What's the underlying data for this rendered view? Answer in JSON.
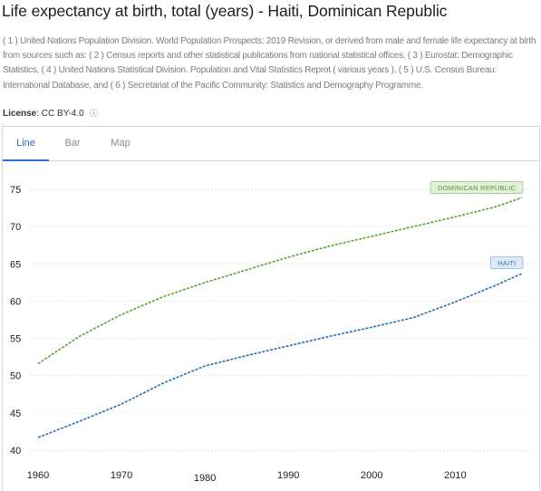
{
  "header": {
    "title": "Life expectancy at birth, total (years) - Haiti, Dominican Republic",
    "sources": "( 1 ) United Nations Population Division. World Population Prospects: 2019 Revision, or derived from male and female life expectancy at birth from sources such as: ( 2 ) Census reports and other statistical publications from national statistical offices, ( 3 ) Eurostat: Demographic Statistics, ( 4 ) United Nations Statistical Division. Population and Vital Statistics Reprot ( various years ), ( 5 ) U.S. Census Bureau: International Database, and ( 6 ) Secretariat of the Pacific Community: Statistics and Demography Programme.",
    "license_label": "License",
    "license_value": ": CC BY-4.0"
  },
  "tabs": [
    {
      "label": "Line",
      "active": true
    },
    {
      "label": "Bar",
      "active": false
    },
    {
      "label": "Map",
      "active": false
    }
  ],
  "colors": {
    "accent": "#2a6fd2",
    "haiti": "#2d6db5",
    "dominican_republic": "#5aa33a"
  },
  "chart_data": {
    "type": "line",
    "title": "",
    "xlabel": "",
    "ylabel": "",
    "xlim": [
      1960,
      2018
    ],
    "ylim": [
      40,
      75
    ],
    "yticks": [
      40,
      45,
      50,
      55,
      60,
      65,
      70,
      75
    ],
    "xticks": [
      1960,
      1970,
      1980,
      1990,
      2000,
      2010
    ],
    "grid": true,
    "legend": "inline labels at line ends",
    "x": [
      1960,
      1965,
      1970,
      1975,
      1980,
      1985,
      1990,
      1995,
      2000,
      2005,
      2010,
      2015,
      2018
    ],
    "series": [
      {
        "name": "DOMINICAN REPUBLIC",
        "color": "#5aa33a",
        "values": [
          51.6,
          55.3,
          58.2,
          60.6,
          62.5,
          64.2,
          65.9,
          67.4,
          68.7,
          70.0,
          71.3,
          72.7,
          73.9
        ]
      },
      {
        "name": "HAITI",
        "color": "#2d6db5",
        "values": [
          41.7,
          43.9,
          46.2,
          49.0,
          51.3,
          52.7,
          54.0,
          55.3,
          56.5,
          57.8,
          59.9,
          62.2,
          63.7
        ]
      }
    ]
  }
}
